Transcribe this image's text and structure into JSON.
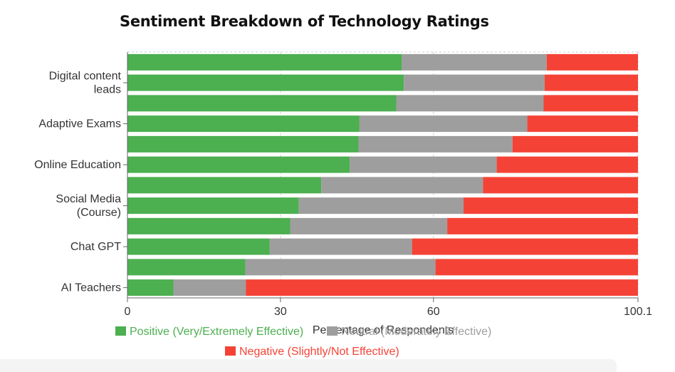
{
  "chart_data": {
    "type": "bar",
    "orientation": "horizontal",
    "stacked": true,
    "title": "Sentiment Breakdown of Technology Ratings",
    "xlabel": "Percentage of Respondents",
    "ylabel": "",
    "xlim": [
      0,
      100.1
    ],
    "x_ticks": [
      "0",
      "30",
      "60",
      "100.1"
    ],
    "x_tick_values": [
      0,
      30,
      60,
      100.1
    ],
    "grid": true,
    "legend_placement": "bottom",
    "categories": [
      "",
      "Digital content leads",
      "",
      "Adaptive Exams",
      "",
      "Online Education",
      "",
      "Social Media (Course)",
      "",
      "Chat GPT",
      "",
      "AI Teachers"
    ],
    "series": [
      {
        "name": "Positive (Very/Extremely Effective)",
        "color": "#4caf50",
        "values": [
          53.8,
          54.2,
          52.7,
          45.5,
          45.3,
          43.6,
          38.0,
          33.6,
          31.9,
          27.9,
          23.1,
          9.0
        ]
      },
      {
        "name": "Neutral (Moderately Effective)",
        "color": "#9e9e9e",
        "values": [
          28.4,
          27.6,
          28.9,
          32.9,
          30.2,
          28.8,
          31.7,
          32.3,
          30.8,
          27.9,
          37.3,
          14.2
        ]
      },
      {
        "name": "Negative (Slightly/Not Effective)",
        "color": "#f44336",
        "values": [
          17.9,
          18.3,
          18.5,
          21.7,
          24.6,
          27.7,
          30.4,
          34.2,
          37.4,
          44.3,
          39.7,
          76.9
        ]
      }
    ]
  }
}
